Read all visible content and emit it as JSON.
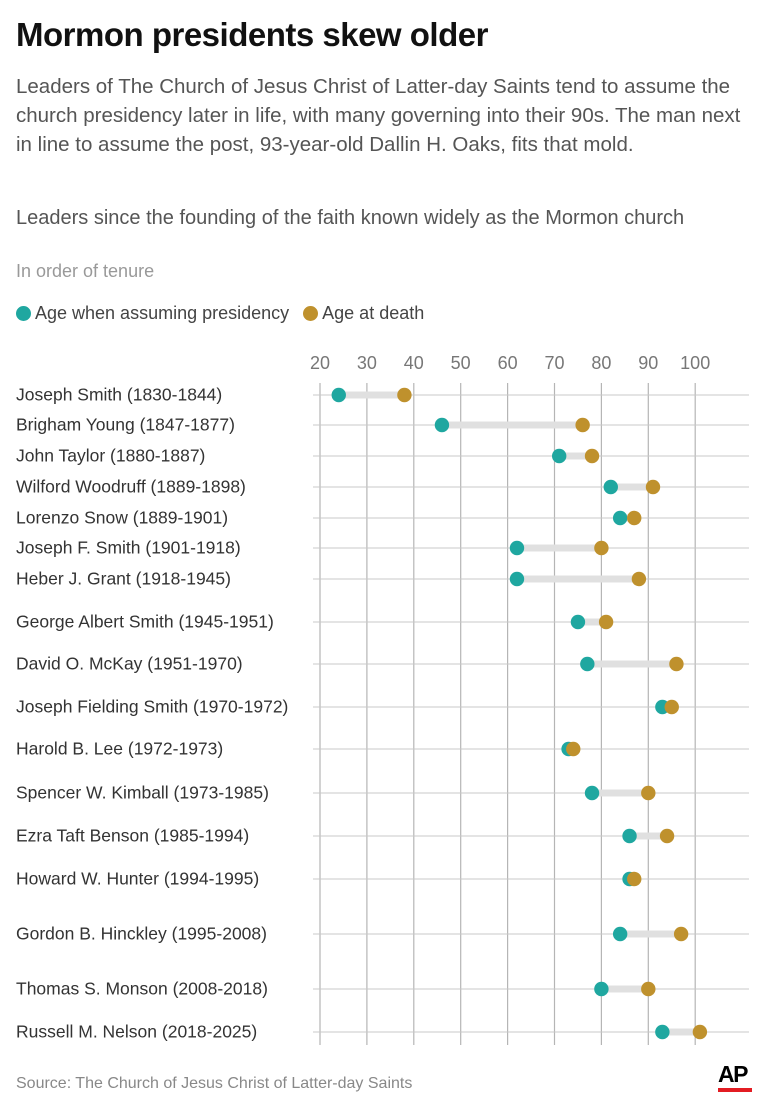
{
  "title": "Mormon presidents skew older",
  "intro": "Leaders of The Church of Jesus Christ of Latter-day Saints tend to assume the church presidency later in life, with many governing into their 90s. The man next in line to assume the post, 93-year-old Dallin H. Oaks, fits that mold.",
  "chart_data": {
    "type": "dumbbell",
    "title": "Leaders since the founding of the faith known widely as the Mormon church",
    "subtitle": "In order of tenure",
    "legend_position": "top-left",
    "grid": true,
    "xlim": [
      20,
      110
    ],
    "x_ticks": [
      20,
      30,
      40,
      50,
      60,
      70,
      80,
      90,
      100
    ],
    "series": [
      {
        "name": "Age when assuming presidency",
        "color": "#1fa7a0"
      },
      {
        "name": "Age at death",
        "color": "#bf912d"
      }
    ],
    "categories": [
      "Joseph Smith (1830-1844)",
      "Brigham Young (1847-1877)",
      "John Taylor (1880-1887)",
      "Wilford Woodruff (1889-1898)",
      "Lorenzo Snow (1889-1901)",
      "Joseph F. Smith (1901-1918)",
      "Heber J. Grant (1918-1945)",
      "George Albert Smith (1945-1951)",
      "David O. McKay (1951-1970)",
      "Joseph Fielding Smith (1970-1972)",
      "Harold B. Lee (1972-1973)",
      "Spencer W. Kimball (1973-1985)",
      "Ezra Taft Benson (1985-1994)",
      "Howard W. Hunter (1994-1995)",
      "Gordon B. Hinckley (1995-2008)",
      "Thomas S. Monson (2008-2018)",
      "Russell M. Nelson (2018-2025)"
    ],
    "age_assuming": [
      24,
      46,
      71,
      82,
      84,
      62,
      62,
      75,
      77,
      93,
      73,
      78,
      86,
      86,
      84,
      80,
      93
    ],
    "age_death": [
      38,
      76,
      78,
      91,
      87,
      80,
      88,
      81,
      96,
      95,
      74,
      90,
      94,
      87,
      97,
      90,
      101
    ]
  },
  "source": "Source: The Church of Jesus Christ of Latter-day Saints",
  "logo": "AP"
}
